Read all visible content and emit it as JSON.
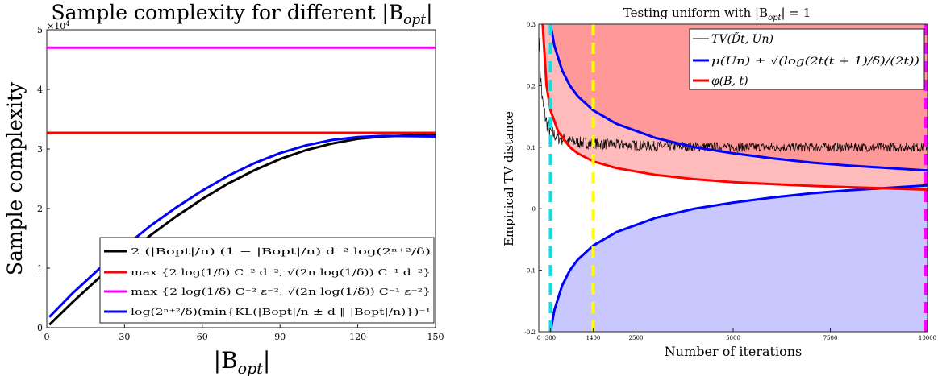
{
  "chart_data": [
    {
      "type": "line",
      "title": "Sample complexity for different |B",
      "title_sub": "opt",
      "title_end": "|",
      "xlabel": "|B",
      "xlabel_sub": "opt",
      "xlabel_end": "|",
      "ylabel": "Sample complexity",
      "y_exponent_label": "×10",
      "y_exponent": "4",
      "xlim": [
        0,
        150
      ],
      "ylim": [
        0,
        5
      ],
      "x_ticks": [
        "0",
        "30",
        "60",
        "90",
        "120",
        "150"
      ],
      "y_ticks": [
        "0",
        "1",
        "2",
        "3",
        "4",
        "5"
      ],
      "grid": false,
      "legend_placement": "bottom-right",
      "series": [
        {
          "name": "2 (|Bopt|/n) (1 − |Bopt|/n) d⁻² log(2ⁿ⁺²/δ)",
          "color": "#000000",
          "x": [
            1,
            10,
            20,
            30,
            40,
            50,
            60,
            70,
            80,
            90,
            100,
            110,
            120,
            130,
            140,
            150
          ],
          "values": [
            0.05,
            0.43,
            0.83,
            1.2,
            1.55,
            1.87,
            2.16,
            2.42,
            2.64,
            2.83,
            2.98,
            3.09,
            3.17,
            3.21,
            3.225,
            3.23
          ]
        },
        {
          "name": "max {2 log(1/δ) C⁻² d⁻², √(2n log(1/δ)) C⁻¹ d⁻²}",
          "color": "#ff0000",
          "x": [
            0,
            150
          ],
          "values": [
            3.27,
            3.27
          ]
        },
        {
          "name": "max {2 log(1/δ) C⁻² ε⁻², √(2n log(1/δ)) C⁻¹ ε⁻²}",
          "color": "#ff00ff",
          "x": [
            0,
            150
          ],
          "values": [
            4.7,
            4.7
          ]
        },
        {
          "name": "log(2ⁿ⁺²/δ)(min{KL(|Bopt|/n ± d ‖ |Bopt|/n)})⁻¹",
          "color": "#0000ff",
          "x": [
            1,
            10,
            20,
            30,
            40,
            50,
            60,
            70,
            80,
            90,
            100,
            110,
            120,
            130,
            140,
            150
          ],
          "values": [
            0.18,
            0.58,
            0.98,
            1.36,
            1.71,
            2.02,
            2.3,
            2.55,
            2.76,
            2.93,
            3.06,
            3.15,
            3.2,
            3.22,
            3.215,
            3.21
          ]
        }
      ]
    },
    {
      "type": "line",
      "title": "Testing uniform with |B",
      "title_sub": "opt",
      "title_end": "| = 1",
      "xlabel": "Number of iterations",
      "ylabel": "Empirical TV distance",
      "xlim": [
        0,
        10000
      ],
      "ylim": [
        -0.2,
        0.3
      ],
      "x_ticks": [
        "0",
        "300",
        "1400",
        "2500",
        "5000",
        "7500",
        "10000"
      ],
      "y_ticks": [
        "-0.2",
        "-0.1",
        "0",
        "0.1",
        "0.2",
        "0.3"
      ],
      "grid": false,
      "legend_placement": "top-right",
      "vertical_lines": [
        {
          "x": 300,
          "color": "#00e5e5"
        },
        {
          "x": 1400,
          "color": "#ffff00"
        },
        {
          "x": 10000,
          "color": "#ff00ff"
        }
      ],
      "shading": {
        "above_upper": "#ff9999",
        "between_upper_phi": "#ffbbbb",
        "below_lower": "#c8c8ff"
      },
      "series": [
        {
          "name": "TV(D̃t, Un)",
          "color": "#000000",
          "x": [
            10,
            50,
            100,
            200,
            300,
            500,
            800,
            1000,
            1400,
            2000,
            3000,
            4000,
            5000,
            6000,
            7000,
            8000,
            9000,
            10000
          ],
          "values": [
            0.28,
            0.21,
            0.17,
            0.14,
            0.125,
            0.115,
            0.11,
            0.108,
            0.106,
            0.104,
            0.102,
            0.101,
            0.1,
            0.1,
            0.1,
            0.1,
            0.1,
            0.1
          ]
        },
        {
          "name": "μ(Un) ± √(log(2t(t + 1)/δ)/(2t))",
          "color": "#0000ff",
          "x": [
            300,
            400,
            600,
            800,
            1000,
            1400,
            2000,
            3000,
            4000,
            5000,
            6000,
            7000,
            8000,
            9000,
            10000
          ],
          "values": [
            0.3,
            0.265,
            0.225,
            0.2,
            0.183,
            0.16,
            0.138,
            0.115,
            0.1,
            0.09,
            0.082,
            0.075,
            0.07,
            0.066,
            0.062
          ],
          "lower_values": [
            -0.2,
            -0.165,
            -0.125,
            -0.1,
            -0.083,
            -0.06,
            -0.038,
            -0.015,
            0.0,
            0.01,
            0.018,
            0.025,
            0.03,
            0.034,
            0.038
          ]
        },
        {
          "name": "φ(B, t)",
          "color": "#ff0000",
          "x": [
            100,
            200,
            300,
            500,
            800,
            1000,
            1400,
            2000,
            3000,
            4000,
            5000,
            6000,
            7000,
            8000,
            9000,
            10000
          ],
          "values": [
            0.3,
            0.2,
            0.16,
            0.125,
            0.1,
            0.09,
            0.077,
            0.066,
            0.055,
            0.048,
            0.043,
            0.04,
            0.037,
            0.035,
            0.033,
            0.031
          ]
        }
      ]
    }
  ]
}
